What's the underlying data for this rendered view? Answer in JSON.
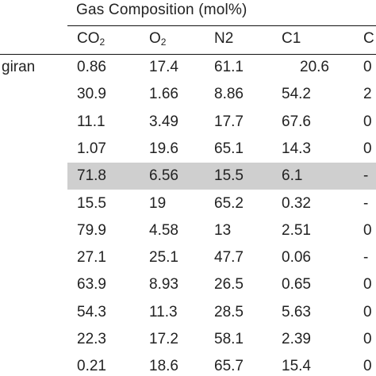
{
  "table": {
    "title": "Gas Composition (mol%)",
    "columns": [
      {
        "name": "CO",
        "sub": "2"
      },
      {
        "name": "O",
        "sub": "2"
      },
      {
        "name": "N2",
        "sub": ""
      },
      {
        "name": "C1",
        "sub": ""
      },
      {
        "name": "C",
        "sub": ""
      }
    ],
    "rows": [
      {
        "label": "giran",
        "cells": [
          "0.86",
          "17.4",
          "61.1",
          "20.6",
          "0"
        ],
        "highlighted": false
      },
      {
        "label": "",
        "cells": [
          "30.9",
          "1.66",
          "8.86",
          "54.2",
          "2"
        ],
        "highlighted": false
      },
      {
        "label": "",
        "cells": [
          "11.1",
          "3.49",
          "17.7",
          "67.6",
          "0"
        ],
        "highlighted": false
      },
      {
        "label": "",
        "cells": [
          "1.07",
          "19.6",
          "65.1",
          "14.3",
          "0"
        ],
        "highlighted": false
      },
      {
        "label": "",
        "cells": [
          "71.8",
          "6.56",
          "15.5",
          "6.1",
          "-"
        ],
        "highlighted": true
      },
      {
        "label": "",
        "cells": [
          "15.5",
          "19",
          "65.2",
          "0.32",
          "-"
        ],
        "highlighted": false
      },
      {
        "label": "",
        "cells": [
          "79.9",
          "4.58",
          "13",
          "2.51",
          "0"
        ],
        "highlighted": false
      },
      {
        "label": "",
        "cells": [
          "27.1",
          "25.1",
          "47.7",
          "0.06",
          "-"
        ],
        "highlighted": false
      },
      {
        "label": "",
        "cells": [
          "63.9",
          "8.93",
          "26.5",
          "0.65",
          "0"
        ],
        "highlighted": false
      },
      {
        "label": "",
        "cells": [
          "54.3",
          "11.3",
          "28.5",
          "5.63",
          "0"
        ],
        "highlighted": false
      },
      {
        "label": "",
        "cells": [
          "22.3",
          "17.2",
          "58.1",
          "2.39",
          "0"
        ],
        "highlighted": false
      },
      {
        "label": "",
        "cells": [
          "0.21",
          "18.6",
          "65.7",
          "15.4",
          "0"
        ],
        "highlighted": false
      }
    ]
  }
}
